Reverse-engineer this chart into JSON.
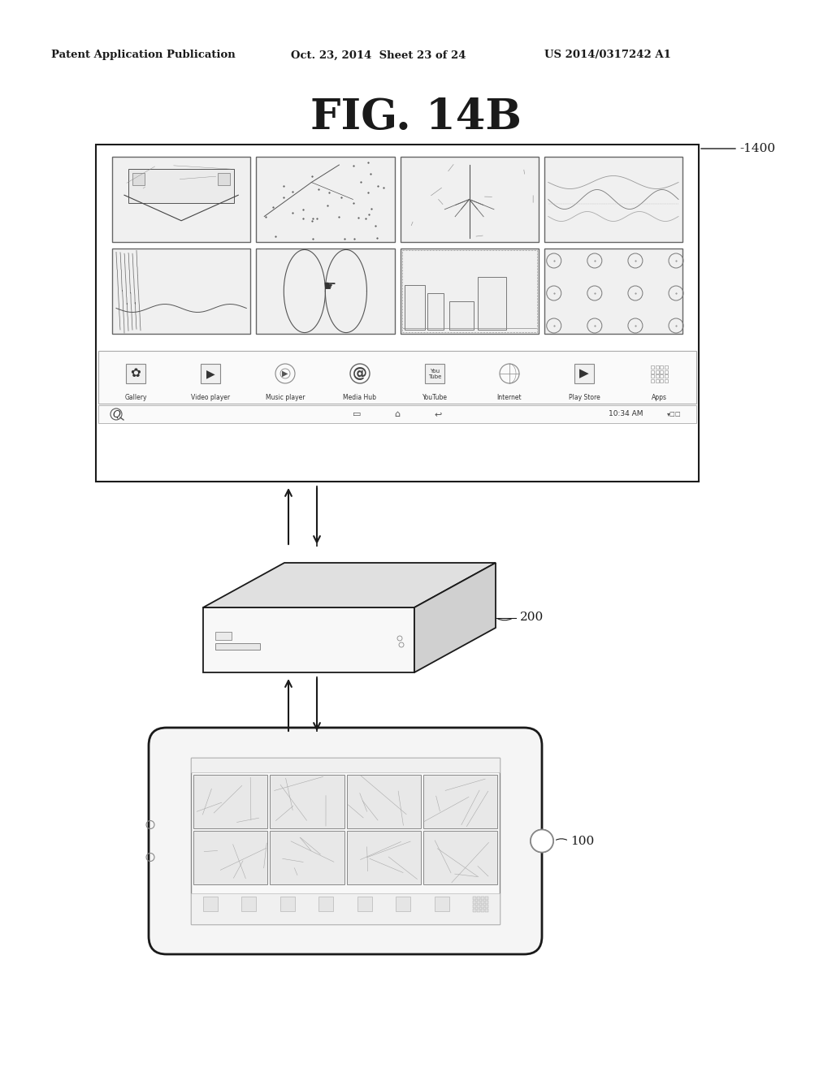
{
  "title": "FIG. 14B",
  "header_left": "Patent Application Publication",
  "header_mid": "Oct. 23, 2014  Sheet 23 of 24",
  "header_right": "US 2014/0317242 A1",
  "label_1400": "-1400",
  "label_200": "200",
  "label_100": "100",
  "bg_color": "#ffffff",
  "line_color": "#1a1a1a",
  "gray_top": "#e0e0e0",
  "gray_right": "#c8c8c8",
  "gray_front": "#f5f5f5",
  "app_labels": [
    "Gallery",
    "Video player",
    "Music player",
    "Media Hub",
    "YouTube",
    "Internet",
    "Play Store",
    "Apps"
  ],
  "arrow_color": "#1a1a1a"
}
